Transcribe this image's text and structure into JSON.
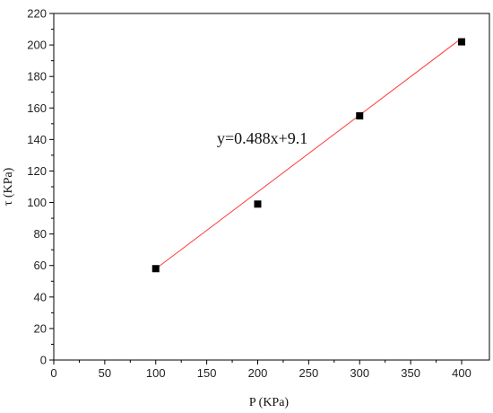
{
  "chart_data": {
    "type": "scatter",
    "title": "",
    "xlabel": "P (KPa)",
    "ylabel": "τ (KPa)",
    "xlim": [
      0,
      400
    ],
    "ylim": [
      0,
      220
    ],
    "xticks": [
      0,
      50,
      100,
      150,
      200,
      250,
      300,
      350,
      400
    ],
    "yticks": [
      0,
      20,
      40,
      60,
      80,
      100,
      120,
      140,
      160,
      180,
      200,
      220
    ],
    "grid": false,
    "series": [
      {
        "marker": "square",
        "color": "#000000",
        "x": [
          100,
          200,
          300,
          400
        ],
        "y": [
          58,
          99,
          155,
          202
        ]
      }
    ],
    "fit_line": {
      "color": "#ff3b3b",
      "slope": 0.488,
      "intercept": 9.1,
      "x_range": [
        100,
        400
      ]
    },
    "annotation": {
      "text": "y=0.488x+9.1"
    }
  }
}
